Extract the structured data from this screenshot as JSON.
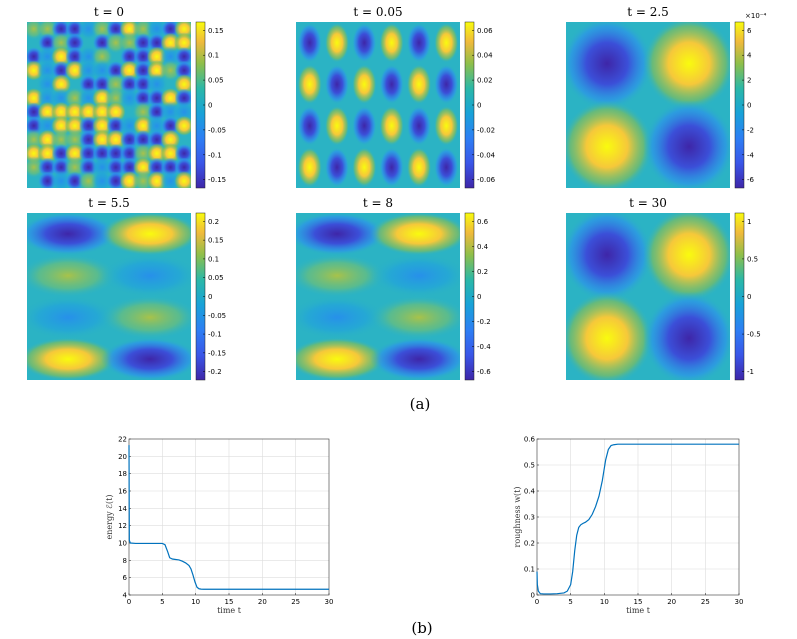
{
  "panels_a": [
    {
      "title": "t = 0",
      "colorbar_ticks": [
        "0.15",
        "0.1",
        "0.05",
        "0",
        "-0.05",
        "-0.1",
        "-0.15"
      ],
      "pattern": "random-checker"
    },
    {
      "title": "t = 0.05",
      "colorbar_ticks": [
        "0.06",
        "0.04",
        "0.02",
        "0",
        "-0.02",
        "-0.04",
        "-0.06"
      ],
      "pattern": "stripes-6x4"
    },
    {
      "title": "t = 2.5",
      "colorbar_ticks": [
        "6",
        "4",
        "2",
        "0",
        "-2",
        "-4",
        "-6"
      ],
      "colorbar_exponent": "×10⁻⁴",
      "pattern": "checker-2x2"
    },
    {
      "title": "t = 5.5",
      "colorbar_ticks": [
        "0.2",
        "0.15",
        "0.1",
        "0.05",
        "0",
        "-0.05",
        "-0.1",
        "-0.15",
        "-0.2"
      ],
      "pattern": "rows-2x4"
    },
    {
      "title": "t = 8",
      "colorbar_ticks": [
        "0.6",
        "0.4",
        "0.2",
        "0",
        "-0.2",
        "-0.4",
        "-0.6"
      ],
      "pattern": "rows-2x4"
    },
    {
      "title": "t = 30",
      "colorbar_ticks": [
        "1",
        "0.5",
        "0",
        "-0.5",
        "-1"
      ],
      "pattern": "checker-2x2"
    }
  ],
  "caption_a": "(a)",
  "caption_b": "(b)",
  "colors": {
    "low": "#3e26a8",
    "mid": "#2bb3c4",
    "high": "#f9fb0e",
    "line": "#0072bd",
    "grid": "#dddddd"
  },
  "chart_data": [
    {
      "type": "line",
      "title": "",
      "xlabel": "time t",
      "ylabel": "energy ℰ(t)",
      "xlim": [
        0,
        30
      ],
      "ylim": [
        4,
        22
      ],
      "xticks": [
        0,
        5,
        10,
        15,
        20,
        25,
        30
      ],
      "yticks": [
        4,
        6,
        8,
        10,
        12,
        14,
        16,
        18,
        20,
        22
      ],
      "grid": true,
      "series": [
        {
          "name": "energy",
          "x": [
            0,
            0.05,
            0.2,
            1,
            3,
            5,
            5.4,
            5.8,
            6.1,
            6.5,
            7,
            7.5,
            8,
            8.5,
            9,
            9.3,
            9.6,
            9.9,
            10.2,
            10.5,
            10.8,
            11.2,
            12,
            15,
            20,
            25,
            30
          ],
          "y": [
            21.3,
            10.3,
            10,
            9.95,
            9.95,
            9.95,
            9.8,
            9,
            8.3,
            8.15,
            8.1,
            8.05,
            7.9,
            7.7,
            7.4,
            7.0,
            6.3,
            5.5,
            4.9,
            4.72,
            4.68,
            4.66,
            4.66,
            4.66,
            4.66,
            4.66,
            4.66
          ]
        }
      ]
    },
    {
      "type": "line",
      "title": "",
      "xlabel": "time t",
      "ylabel": "roughness w(t)",
      "xlim": [
        0,
        30
      ],
      "ylim": [
        0,
        0.6
      ],
      "xticks": [
        0,
        5,
        10,
        15,
        20,
        25,
        30
      ],
      "yticks": [
        0,
        0.1,
        0.2,
        0.3,
        0.4,
        0.5,
        0.6
      ],
      "grid": true,
      "series": [
        {
          "name": "roughness",
          "x": [
            0,
            0.05,
            0.2,
            0.5,
            1,
            2,
            3,
            4,
            4.5,
            5,
            5.3,
            5.6,
            5.9,
            6.2,
            6.5,
            6.8,
            7.2,
            7.7,
            8.2,
            8.7,
            9.2,
            9.7,
            10.2,
            10.6,
            11,
            11.4,
            12,
            15,
            20,
            25,
            30
          ],
          "y": [
            0.09,
            0.04,
            0.015,
            0.005,
            0.004,
            0.004,
            0.005,
            0.008,
            0.015,
            0.04,
            0.09,
            0.17,
            0.23,
            0.26,
            0.27,
            0.275,
            0.28,
            0.29,
            0.31,
            0.34,
            0.38,
            0.44,
            0.52,
            0.56,
            0.575,
            0.578,
            0.58,
            0.58,
            0.58,
            0.58,
            0.58
          ]
        }
      ]
    }
  ]
}
